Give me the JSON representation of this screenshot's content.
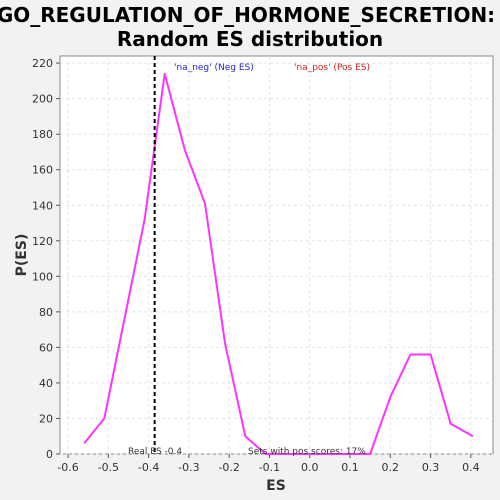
{
  "chart_data": {
    "type": "line",
    "title_line1": "GO_REGULATION_OF_HORMONE_SECRETION:",
    "title_line2": "Random ES distribution",
    "xlabel": "ES",
    "ylabel": "P(ES)",
    "xlim": [
      -0.62,
      0.455
    ],
    "ylim": [
      0,
      224
    ],
    "x_ticks": [
      -0.6,
      -0.5,
      -0.4,
      -0.3,
      -0.2,
      -0.1,
      0.0,
      0.1,
      0.2,
      0.3,
      0.4
    ],
    "y_ticks": [
      0,
      20,
      40,
      60,
      80,
      100,
      120,
      140,
      160,
      180,
      200,
      220
    ],
    "grid": true,
    "series": [
      {
        "color": "#ff33ff",
        "x": [
          -0.56,
          -0.51,
          -0.41,
          -0.36,
          -0.31,
          -0.26,
          -0.21,
          -0.16,
          -0.11,
          -0.06,
          -0.01,
          0.05,
          0.1,
          0.15,
          0.2,
          0.25,
          0.3,
          0.35,
          0.405
        ],
        "values": [
          6,
          20,
          132,
          214,
          171,
          141,
          62,
          10,
          0,
          0,
          0,
          0,
          0,
          0,
          32,
          56,
          56,
          17,
          10
        ]
      }
    ],
    "real_es": -0.385,
    "legend": [
      {
        "label": "'na_neg' (Neg ES)",
        "color": "#2222cc"
      },
      {
        "label": "'na_pos' (Pos ES)",
        "color": "#cc2222"
      }
    ],
    "annotations": {
      "real_es_label": "Real ES -0.4",
      "pos_scores_label": "Sets with pos scores: 17%"
    }
  }
}
